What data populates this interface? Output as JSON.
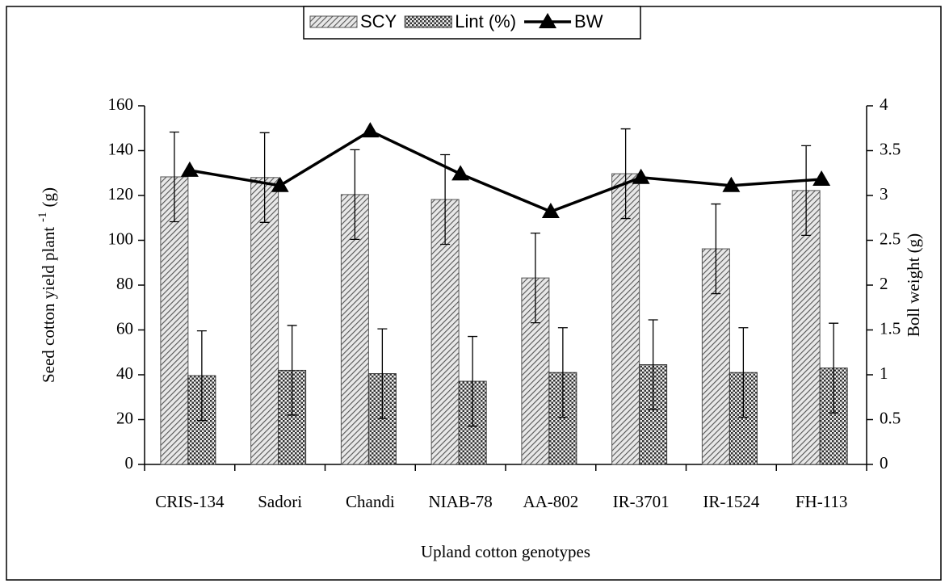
{
  "chart_data": {
    "type": "bar-line",
    "x_label": "Upland cotton genotypes",
    "y_label": "Seed cotton yield plant",
    "y_label_sup": "-1",
    "y_label_unit": "(g)",
    "y2_label": "Boll weight (g)",
    "categories": [
      "CRIS-134",
      "Sadori",
      "Chandi",
      "NIAB-78",
      "AA-802",
      "IR-3701",
      "IR-1524",
      "FH-113"
    ],
    "series": [
      {
        "name": "SCY",
        "type": "bar",
        "pattern": "diagonal",
        "color": "#555555",
        "values": [
          128.3,
          128,
          120.4,
          118.2,
          83.2,
          129.7,
          96.2,
          122.2
        ],
        "errors": [
          20,
          20,
          20,
          20,
          20,
          20,
          20,
          20
        ]
      },
      {
        "name": "Lint (%)",
        "type": "bar",
        "pattern": "checker",
        "color": "#333333",
        "values": [
          39.6,
          42,
          40.5,
          37.1,
          41,
          44.5,
          41,
          43
        ],
        "errors": [
          20,
          20,
          20,
          20,
          20,
          20,
          20,
          20
        ]
      },
      {
        "name": "BW",
        "type": "line",
        "axis": "y2",
        "color": "#000000",
        "values": [
          3.28,
          3.11,
          3.72,
          3.24,
          2.82,
          3.2,
          3.11,
          3.18
        ]
      }
    ],
    "ylim": [
      0,
      160
    ],
    "yticks": [
      0,
      20,
      40,
      60,
      80,
      100,
      120,
      140,
      160
    ],
    "y2lim": [
      0,
      4
    ],
    "y2ticks": [
      0,
      0.5,
      1,
      1.5,
      2,
      2.5,
      3,
      3.5,
      4
    ],
    "legend": "top",
    "grid": false
  }
}
